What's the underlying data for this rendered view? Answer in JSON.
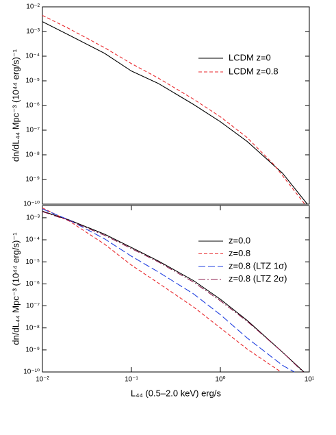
{
  "chart_data": [
    {
      "type": "line",
      "xlog": true,
      "ylog": true,
      "legend": "upper right",
      "ylabel": "dn/dL₄₄ Mpc⁻³ (10⁴⁴ erg/s)⁻¹",
      "xlim": [
        0.01,
        10
      ],
      "ylim": [
        1e-10,
        0.01
      ],
      "yticks": [
        {
          "value": 0.01,
          "label": "10⁻²"
        },
        {
          "value": 0.001,
          "label": "10⁻³"
        },
        {
          "value": 0.0001,
          "label": "10⁻⁴"
        },
        {
          "value": 1e-05,
          "label": "10⁻⁵"
        },
        {
          "value": 1e-06,
          "label": "10⁻⁶"
        },
        {
          "value": 1e-07,
          "label": "10⁻⁷"
        },
        {
          "value": 1e-08,
          "label": "10⁻⁸"
        },
        {
          "value": 1e-09,
          "label": "10⁻⁹"
        },
        {
          "value": 1e-10,
          "label": "10⁻¹⁰"
        }
      ],
      "series": [
        {
          "name": "LCDM z=0",
          "color": "#000000",
          "dash": "none",
          "x": [
            0.01,
            0.02,
            0.05,
            0.1,
            0.2,
            0.5,
            1,
            2,
            5,
            9.5
          ],
          "values": [
            0.0025,
            0.00071,
            0.00013,
            2.5e-05,
            7.9e-06,
            1.1e-06,
            2.2e-07,
            3.5e-08,
            1.8e-09,
            1e-10
          ]
        },
        {
          "name": "LCDM z=0.8",
          "color": "#e8262a",
          "dash": "5,3",
          "x": [
            0.01,
            0.02,
            0.05,
            0.1,
            0.2,
            0.5,
            1,
            2,
            4,
            8.9
          ],
          "values": [
            0.0045,
            0.0013,
            0.00022,
            5e-05,
            1.3e-05,
            1.8e-06,
            3.5e-07,
            5e-08,
            4e-09,
            1e-10
          ]
        }
      ]
    },
    {
      "type": "line",
      "xlog": true,
      "ylog": true,
      "legend": "upper right",
      "ylabel": "dn/dL₄₄ Mpc⁻³ (10⁴⁴ erg/s)⁻¹",
      "xlabel": "L₄₄ (0.5–2.0 keV) erg/s",
      "xlim": [
        0.01,
        10
      ],
      "ylim": [
        1e-10,
        0.0036
      ],
      "xticks": [
        {
          "value": 0.01,
          "label": "10⁻²"
        },
        {
          "value": 0.1,
          "label": "10⁻¹"
        },
        {
          "value": 1,
          "label": "10⁰"
        },
        {
          "value": 10,
          "label": "10¹"
        }
      ],
      "yticks": [
        {
          "value": 0.001,
          "label": "10⁻³"
        },
        {
          "value": 0.0001,
          "label": "10⁻⁴"
        },
        {
          "value": 1e-05,
          "label": "10⁻⁵"
        },
        {
          "value": 1e-06,
          "label": "10⁻⁶"
        },
        {
          "value": 1e-07,
          "label": "10⁻⁷"
        },
        {
          "value": 1e-08,
          "label": "10⁻⁸"
        },
        {
          "value": 1e-09,
          "label": "10⁻⁹"
        },
        {
          "value": 1e-10,
          "label": "10⁻¹⁰"
        }
      ],
      "series": [
        {
          "name": "z=0.0",
          "color": "#000000",
          "dash": "none",
          "x": [
            0.01,
            0.02,
            0.05,
            0.1,
            0.2,
            0.5,
            1,
            2,
            5,
            8.7
          ],
          "values": [
            0.002,
            0.00079,
            0.00018,
            4.5e-05,
            1.1e-05,
            1.4e-06,
            2e-07,
            2.2e-08,
            7.9e-10,
            1e-10
          ]
        },
        {
          "name": "z=0.8",
          "color": "#e8262a",
          "dash": "5,3",
          "x": [
            0.01,
            0.02,
            0.05,
            0.1,
            0.2,
            0.5,
            1,
            2,
            4.8
          ],
          "values": [
            0.0028,
            0.00071,
            6.3e-05,
            7.1e-06,
            1.1e-06,
            8.9e-08,
            1e-08,
            1.1e-09,
            1e-10
          ]
        },
        {
          "name": "z=0.8 (LTZ 1σ)",
          "color": "#1f3fe0",
          "dash": "10,4",
          "x": [
            0.01,
            0.02,
            0.05,
            0.1,
            0.2,
            0.5,
            1,
            2,
            5,
            6.8
          ],
          "values": [
            0.0025,
            0.00079,
            0.00011,
            1.8e-05,
            3.5e-06,
            3.5e-07,
            4e-08,
            3.5e-09,
            2e-10,
            1e-10
          ]
        },
        {
          "name": "z=0.8 (LTZ 2σ)",
          "color": "#8b1a4a",
          "dash": "10,3,2,3",
          "x": [
            0.01,
            0.02,
            0.05,
            0.1,
            0.2,
            0.5,
            1,
            2,
            5,
            8.5
          ],
          "values": [
            0.0019,
            0.00074,
            0.00016,
            4e-05,
            1e-05,
            1.2e-06,
            1.7e-07,
            2e-08,
            7.9e-10,
            1e-10
          ]
        }
      ]
    }
  ]
}
